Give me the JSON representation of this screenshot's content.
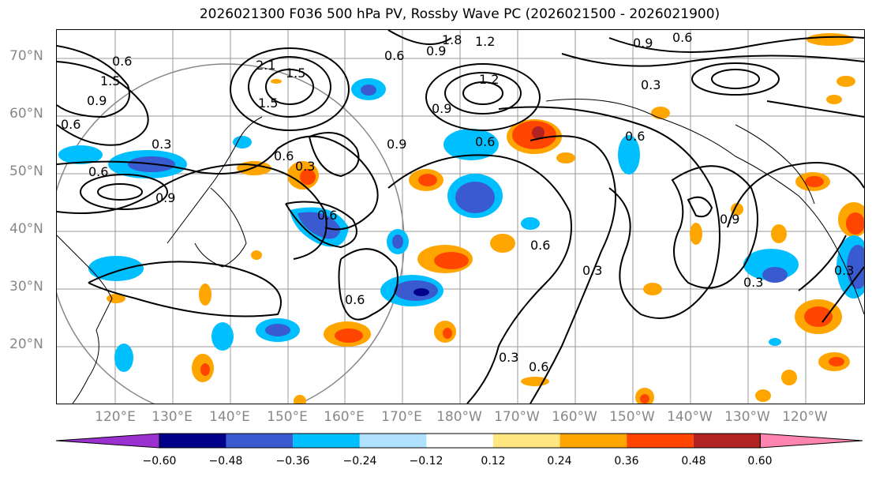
{
  "title": "2026021300 F036 500 hPa PV, Rossby Wave PC (2026021500 - 2026021900)",
  "lat_labels": [
    "70°N",
    "60°N",
    "50°N",
    "40°N",
    "30°N",
    "20°N"
  ],
  "lon_labels": [
    "120°E",
    "130°E",
    "140°E",
    "150°E",
    "160°E",
    "170°E",
    "180°W",
    "170°W",
    "160°W",
    "150°W",
    "140°W",
    "130°W",
    "120°W"
  ],
  "colorbar": {
    "ticks": [
      "−0.60",
      "−0.48",
      "−0.36",
      "−0.24",
      "−0.12",
      "0.12",
      "0.24",
      "0.36",
      "0.48",
      "0.60"
    ],
    "colors": [
      "#9b30d0",
      "#00008b",
      "#3a5bd0",
      "#00bfff",
      "#b0e2ff",
      "#ffffff",
      "#ffe680",
      "#ffa500",
      "#ff4500",
      "#b22222",
      "#ff85b0"
    ]
  },
  "contour_labels": [
    "0.6",
    "1.5",
    "0.9",
    "0.6",
    "0.3",
    "0.9",
    "0.6",
    "2.1",
    "1.5",
    "1.5",
    "0.6",
    "0.3",
    "0.6",
    "0.9",
    "0.9",
    "1.2",
    "0.9",
    "0.6",
    "1.8",
    "1.2",
    "0.9",
    "0.6",
    "0.3",
    "0.6",
    "0.6",
    "0.3",
    "0.6",
    "0.3",
    "0.6",
    "0.9",
    "0.3",
    "0.6",
    "0.3"
  ],
  "colors": {
    "pos_low": "#ffa500",
    "pos_high": "#ff4500",
    "pos_max": "#b22222",
    "neg_low": "#00bfff",
    "neg_high": "#3a5bd0",
    "neg_max": "#00008b"
  }
}
